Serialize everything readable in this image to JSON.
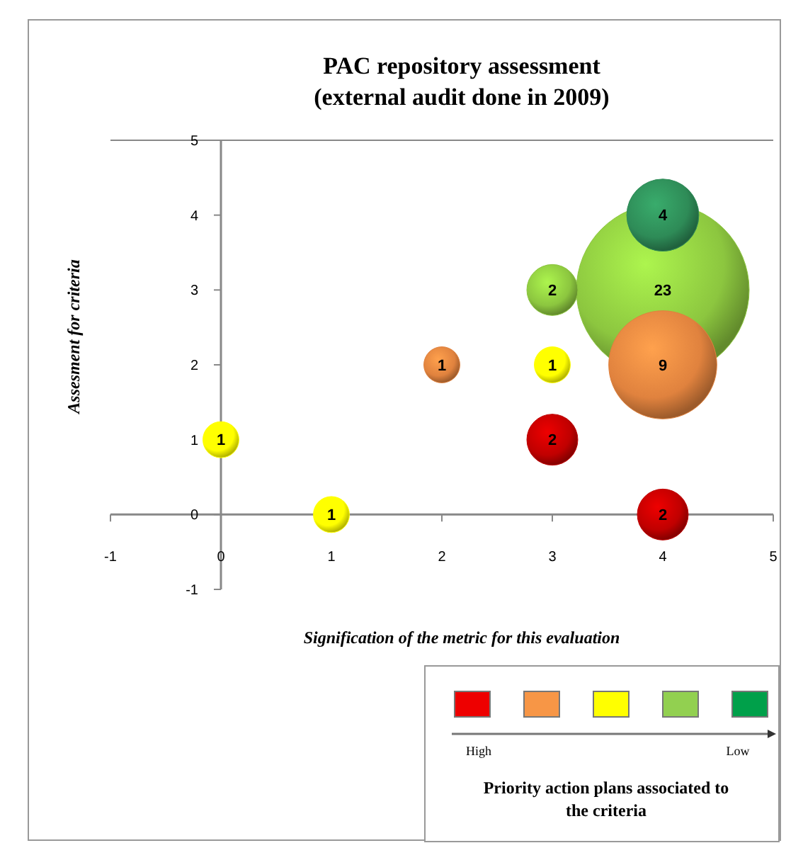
{
  "chart_data": {
    "type": "bubble",
    "title": "PAC repository assessment\n(external audit done in 2009)",
    "xlabel": "Signification of the metric for this evaluation",
    "ylabel": "Assesment for criteria",
    "legend_title": "Priority action plans associated to the criteria",
    "annotations": [
      "High",
      "Low"
    ],
    "x": [
      4,
      0,
      1,
      2,
      3,
      3,
      3,
      4,
      4,
      4
    ],
    "values": [
      3,
      1,
      0,
      2,
      2,
      3,
      1,
      0,
      4,
      2
    ],
    "sizes": [
      23,
      1,
      1,
      1,
      1,
      2,
      2,
      2,
      4,
      9
    ],
    "value_labels": [
      "23",
      "1",
      "1",
      "1",
      "1",
      "2",
      "2",
      "2",
      "4",
      "9"
    ],
    "colors": [
      "#8cc63f",
      "#ffff00",
      "#ffff00",
      "#e0823e",
      "#ffff00",
      "#8cc63f",
      "#c00000",
      "#c00000",
      "#2e8b57",
      "#e0823e"
    ],
    "xlim": [
      -1,
      5
    ],
    "ylim": [
      -1,
      5
    ],
    "xticks": [
      -1,
      0,
      1,
      2,
      3,
      4,
      5
    ],
    "yticks": [
      -1,
      0,
      1,
      2,
      3,
      4,
      5
    ]
  }
}
